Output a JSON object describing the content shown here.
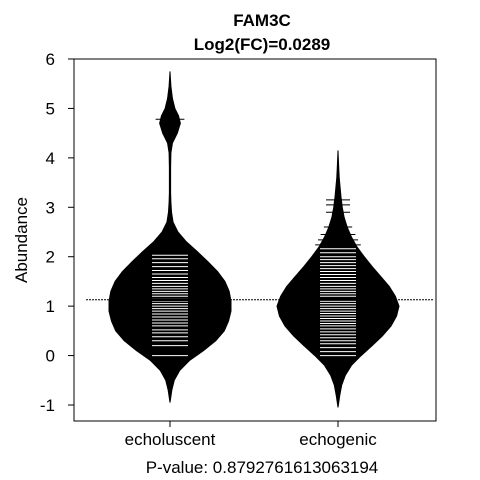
{
  "chart_data": {
    "type": "beanplot",
    "title": "FAM3C",
    "subtitle": "Log2(FC)=0.0289",
    "xlabel": "P-value: 0.8792761613063194",
    "ylabel": "Abundance",
    "ylim": [
      -1.3,
      6.0
    ],
    "yticks": [
      -1,
      0,
      1,
      2,
      3,
      4,
      5,
      6
    ],
    "overall_line": 1.13,
    "grid": false,
    "legend": "none",
    "colors": {
      "bean_fill": "#000000",
      "observation_lines": "#ffffff",
      "axis": "#000000",
      "background": "#ffffff"
    },
    "categories": [
      "echoluscent",
      "echogenic"
    ],
    "beans": [
      {
        "category": "echoluscent",
        "mean": 1.13,
        "density": [
          [
            -0.95,
            0.0
          ],
          [
            -0.7,
            0.03
          ],
          [
            -0.5,
            0.07
          ],
          [
            -0.3,
            0.16
          ],
          [
            -0.1,
            0.32
          ],
          [
            0.1,
            0.55
          ],
          [
            0.3,
            0.75
          ],
          [
            0.5,
            0.89
          ],
          [
            0.7,
            0.96
          ],
          [
            0.9,
            1.0
          ],
          [
            1.1,
            1.0
          ],
          [
            1.3,
            0.97
          ],
          [
            1.5,
            0.9
          ],
          [
            1.7,
            0.78
          ],
          [
            1.9,
            0.62
          ],
          [
            2.1,
            0.45
          ],
          [
            2.3,
            0.27
          ],
          [
            2.5,
            0.13
          ],
          [
            2.7,
            0.05
          ],
          [
            2.9,
            0.025
          ],
          [
            3.1,
            0.015
          ],
          [
            3.3,
            0.01
          ],
          [
            3.5,
            0.01
          ],
          [
            3.8,
            0.01
          ],
          [
            4.1,
            0.015
          ],
          [
            4.3,
            0.04
          ],
          [
            4.5,
            0.12
          ],
          [
            4.7,
            0.17
          ],
          [
            4.85,
            0.14
          ],
          [
            5.0,
            0.08
          ],
          [
            5.2,
            0.04
          ],
          [
            5.45,
            0.015
          ],
          [
            5.75,
            0.0
          ]
        ],
        "observations": [
          0.0,
          0.2,
          0.3,
          0.38,
          0.46,
          0.52,
          0.6,
          0.66,
          0.72,
          0.78,
          0.84,
          0.9,
          0.95,
          1.0,
          1.05,
          1.1,
          1.15,
          1.2,
          1.25,
          1.3,
          1.35,
          1.4,
          1.46,
          1.52,
          1.58,
          1.65,
          1.72,
          1.8,
          1.88,
          1.96,
          2.03,
          4.78
        ]
      },
      {
        "category": "echogenic",
        "mean": 1.14,
        "density": [
          [
            -1.05,
            0.0
          ],
          [
            -0.8,
            0.03
          ],
          [
            -0.6,
            0.06
          ],
          [
            -0.4,
            0.12
          ],
          [
            -0.2,
            0.22
          ],
          [
            0.0,
            0.38
          ],
          [
            0.2,
            0.56
          ],
          [
            0.4,
            0.73
          ],
          [
            0.6,
            0.87
          ],
          [
            0.8,
            0.96
          ],
          [
            1.0,
            1.0
          ],
          [
            1.2,
            0.94
          ],
          [
            1.4,
            0.84
          ],
          [
            1.6,
            0.7
          ],
          [
            1.8,
            0.56
          ],
          [
            2.0,
            0.43
          ],
          [
            2.2,
            0.31
          ],
          [
            2.4,
            0.22
          ],
          [
            2.6,
            0.15
          ],
          [
            2.8,
            0.1
          ],
          [
            3.0,
            0.07
          ],
          [
            3.2,
            0.05
          ],
          [
            3.4,
            0.035
          ],
          [
            3.6,
            0.02
          ],
          [
            3.8,
            0.012
          ],
          [
            4.15,
            0.0
          ]
        ],
        "observations": [
          0.0,
          0.08,
          0.16,
          0.24,
          0.3,
          0.36,
          0.42,
          0.48,
          0.54,
          0.6,
          0.65,
          0.7,
          0.75,
          0.8,
          0.85,
          0.9,
          0.95,
          1.0,
          1.05,
          1.1,
          1.15,
          1.2,
          1.25,
          1.3,
          1.35,
          1.4,
          1.46,
          1.52,
          1.58,
          1.64,
          1.7,
          1.76,
          1.82,
          1.88,
          1.94,
          2.0,
          2.08,
          2.16,
          2.24,
          2.34,
          2.45,
          2.6,
          2.9,
          3.05,
          3.15
        ]
      }
    ]
  }
}
